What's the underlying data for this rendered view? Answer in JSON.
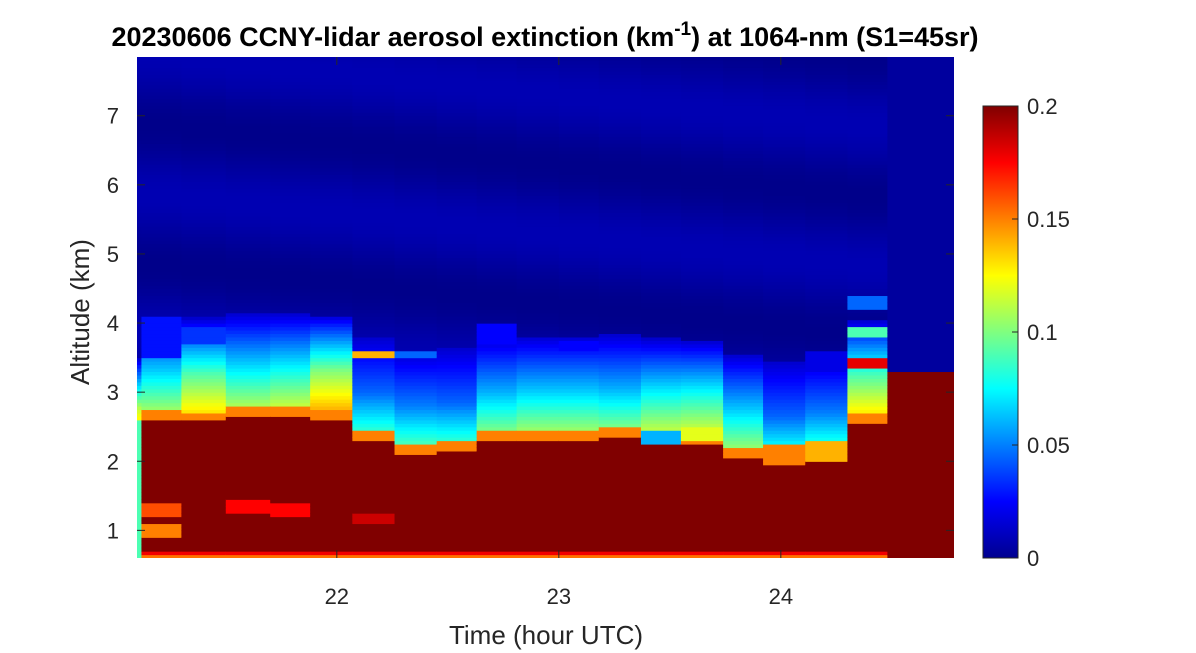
{
  "chart_data": {
    "type": "heatmap",
    "title": {
      "prefix": "20230606 CCNY-lidar aerosol extinction (km",
      "superscript": "-1",
      "suffix": ") at 1064-nm (S1=45sr)"
    },
    "xlabel": "Time (hour UTC)",
    "ylabel": "Altitude (km)",
    "xlim": [
      21.1,
      24.78
    ],
    "ylim": [
      0.6,
      7.85
    ],
    "x_ticks": [
      {
        "value": 22,
        "label": "22"
      },
      {
        "value": 23,
        "label": "23"
      },
      {
        "value": 24,
        "label": "24"
      }
    ],
    "y_ticks": [
      {
        "value": 1,
        "label": "1"
      },
      {
        "value": 2,
        "label": "2"
      },
      {
        "value": 3,
        "label": "3"
      },
      {
        "value": 4,
        "label": "4"
      },
      {
        "value": 5,
        "label": "5"
      },
      {
        "value": 6,
        "label": "6"
      },
      {
        "value": 7,
        "label": "7"
      }
    ],
    "colorbar": {
      "colormap": "jet",
      "clim": [
        0,
        0.2
      ],
      "ticks": [
        {
          "value": 0,
          "label": "0"
        },
        {
          "value": 0.05,
          "label": "0.05"
        },
        {
          "value": 0.1,
          "label": "0.1"
        },
        {
          "value": 0.15,
          "label": "0.15"
        },
        {
          "value": 0.2,
          "label": "0.2"
        }
      ]
    },
    "grid": false,
    "time_columns": [
      {
        "t0": 21.1,
        "t1": 21.12,
        "top": 2.0,
        "peaks": [],
        "mid": 0.12,
        "bands": [
          {
            "z0": 0.6,
            "z1": 2.6,
            "v": 0.09
          }
        ],
        "nosurf": true
      },
      {
        "t0": 21.12,
        "t1": 21.3,
        "top": 2.62,
        "peaks": [
          [
            1.0,
            0.15
          ],
          [
            1.3,
            0.16
          ]
        ],
        "mid": 0.065,
        "bands": [
          {
            "z0": 3.5,
            "z1": 4.1,
            "v": 0.028
          }
        ]
      },
      {
        "t0": 21.3,
        "t1": 21.5,
        "top": 2.58,
        "peaks": [],
        "mid": 0.09,
        "bands": [
          {
            "z0": 3.7,
            "z1": 3.95,
            "v": 0.035
          }
        ]
      },
      {
        "t0": 21.5,
        "t1": 21.7,
        "top": 2.65,
        "peaks": [
          [
            1.35,
            0.175
          ]
        ],
        "mid": 0.07,
        "bands": []
      },
      {
        "t0": 21.7,
        "t1": 21.88,
        "top": 2.65,
        "peaks": [
          [
            1.3,
            0.175
          ]
        ],
        "mid": 0.075,
        "bands": []
      },
      {
        "t0": 21.88,
        "t1": 22.07,
        "top": 2.62,
        "peaks": [],
        "mid": 0.1,
        "bands": []
      },
      {
        "t0": 22.07,
        "t1": 22.26,
        "top": 2.3,
        "peaks": [
          [
            1.18,
            0.185
          ]
        ],
        "mid": 0.045,
        "bands": [
          {
            "z0": 3.5,
            "z1": 3.62,
            "v": 0.14
          }
        ]
      },
      {
        "t0": 22.26,
        "t1": 22.45,
        "top": 2.1,
        "peaks": [],
        "mid": 0.05,
        "bands": [
          {
            "z0": 3.5,
            "z1": 3.6,
            "v": 0.045
          }
        ]
      },
      {
        "t0": 22.45,
        "t1": 22.63,
        "top": 2.15,
        "peaks": [],
        "mid": 0.045,
        "bands": []
      },
      {
        "t0": 22.63,
        "t1": 22.81,
        "top": 2.3,
        "peaks": [],
        "mid": 0.06,
        "bands": [
          {
            "z0": 3.7,
            "z1": 4.0,
            "v": 0.025
          }
        ]
      },
      {
        "t0": 22.81,
        "t1": 23.0,
        "top": 2.32,
        "peaks": [],
        "mid": 0.065,
        "bands": []
      },
      {
        "t0": 23.0,
        "t1": 23.18,
        "top": 2.32,
        "peaks": [],
        "mid": 0.065,
        "bands": [
          {
            "z0": 3.6,
            "z1": 3.75,
            "v": 0.025
          }
        ]
      },
      {
        "t0": 23.18,
        "t1": 23.37,
        "top": 2.35,
        "peaks": [],
        "mid": 0.06,
        "bands": []
      },
      {
        "t0": 23.37,
        "t1": 23.55,
        "top": 2.28,
        "peaks": [],
        "mid": 0.075,
        "bands": [
          {
            "z0": 2.25,
            "z1": 2.45,
            "v": 0.06
          }
        ]
      },
      {
        "t0": 23.55,
        "t1": 23.74,
        "top": 2.25,
        "peaks": [],
        "mid": 0.08,
        "bands": [
          {
            "z0": 2.3,
            "z1": 2.5,
            "v": 0.12
          }
        ]
      },
      {
        "t0": 23.74,
        "t1": 23.92,
        "top": 2.05,
        "peaks": [
          [
            2.35,
            0.19
          ]
        ],
        "mid": 0.065,
        "bands": []
      },
      {
        "t0": 23.92,
        "t1": 24.11,
        "top": 1.95,
        "peaks": [],
        "mid": 0.045,
        "bands": [
          {
            "z0": 1.95,
            "z1": 2.25,
            "v": 0.15
          }
        ]
      },
      {
        "t0": 24.11,
        "t1": 24.3,
        "top": 2.0,
        "peaks": [],
        "mid": 0.05,
        "bands": [
          {
            "z0": 2.0,
            "z1": 2.3,
            "v": 0.14
          },
          {
            "z0": 3.3,
            "z1": 3.6,
            "v": 0.02
          }
        ]
      },
      {
        "t0": 24.3,
        "t1": 24.48,
        "top": 2.55,
        "peaks": [],
        "mid": 0.09,
        "bands": [
          {
            "z0": 3.35,
            "z1": 3.5,
            "v": 0.18
          },
          {
            "z0": 3.8,
            "z1": 3.95,
            "v": 0.09
          },
          {
            "z0": 4.2,
            "z1": 4.4,
            "v": 0.045
          }
        ]
      },
      {
        "t0": 24.48,
        "t1": 24.78,
        "top": 3.3,
        "peaks": [],
        "mid": 0.2,
        "bands": [],
        "nosurf": true,
        "flat": true
      }
    ]
  }
}
